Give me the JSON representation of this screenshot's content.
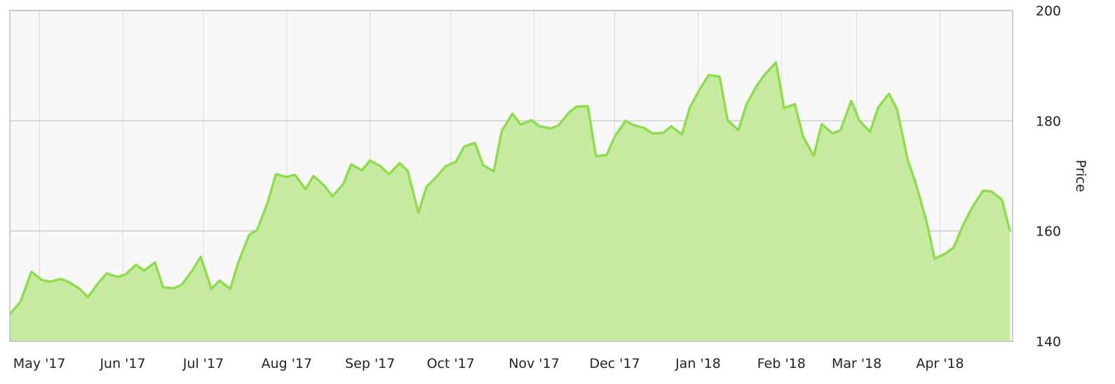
{
  "chart_data": {
    "type": "area",
    "title": "",
    "xlabel": "",
    "ylabel": "Price",
    "y_axis_position": "right",
    "ylim": [
      140,
      200
    ],
    "xlim": [
      "2017-04-20",
      "2018-04-28"
    ],
    "yticks": [
      140,
      160,
      180,
      200
    ],
    "xticks": [
      {
        "label": "May '17",
        "date": "2017-05-01"
      },
      {
        "label": "Jun '17",
        "date": "2017-06-01"
      },
      {
        "label": "Jul '17",
        "date": "2017-07-01"
      },
      {
        "label": "Aug '17",
        "date": "2017-08-01"
      },
      {
        "label": "Sep '17",
        "date": "2017-09-01"
      },
      {
        "label": "Oct '17",
        "date": "2017-10-01"
      },
      {
        "label": "Nov '17",
        "date": "2017-11-01"
      },
      {
        "label": "Dec '17",
        "date": "2017-12-01"
      },
      {
        "label": "Jan '18",
        "date": "2018-01-01"
      },
      {
        "label": "Feb '18",
        "date": "2018-02-01"
      },
      {
        "label": "Mar '18",
        "date": "2018-03-01"
      },
      {
        "label": "Apr '18",
        "date": "2018-04-01"
      }
    ],
    "grid": true,
    "legend": "none",
    "line_color": "#8fdc4f",
    "fill_color": "#c5eaa0",
    "plot_background": "#f8f8f8",
    "grid_color": "#cccccc",
    "series": [
      {
        "x": [
          "2017-04-20",
          "2017-04-24",
          "2017-04-28",
          "2017-05-02",
          "2017-05-05",
          "2017-05-09",
          "2017-05-12",
          "2017-05-16",
          "2017-05-19",
          "2017-05-23",
          "2017-05-26",
          "2017-05-30",
          "2017-06-02",
          "2017-06-06",
          "2017-06-09",
          "2017-06-13",
          "2017-06-16",
          "2017-06-20",
          "2017-06-23",
          "2017-06-27",
          "2017-06-30",
          "2017-07-04",
          "2017-07-07",
          "2017-07-11",
          "2017-07-14",
          "2017-07-18",
          "2017-07-21",
          "2017-07-25",
          "2017-07-28",
          "2017-08-01",
          "2017-08-04",
          "2017-08-08",
          "2017-08-11",
          "2017-08-15",
          "2017-08-18",
          "2017-08-22",
          "2017-08-25",
          "2017-08-29",
          "2017-09-01",
          "2017-09-05",
          "2017-09-08",
          "2017-09-12",
          "2017-09-15",
          "2017-09-19",
          "2017-09-22",
          "2017-09-26",
          "2017-09-29",
          "2017-10-03",
          "2017-10-06",
          "2017-10-10",
          "2017-10-13",
          "2017-10-17",
          "2017-10-20",
          "2017-10-24",
          "2017-10-27",
          "2017-10-31",
          "2017-11-03",
          "2017-11-07",
          "2017-11-10",
          "2017-11-14",
          "2017-11-17",
          "2017-11-21",
          "2017-11-24",
          "2017-11-28",
          "2017-12-01",
          "2017-12-05",
          "2017-12-08",
          "2017-12-12",
          "2017-12-15",
          "2017-12-19",
          "2017-12-22",
          "2017-12-26",
          "2017-12-29",
          "2018-01-02",
          "2018-01-05",
          "2018-01-09",
          "2018-01-12",
          "2018-01-16",
          "2018-01-19",
          "2018-01-23",
          "2018-01-26",
          "2018-01-30",
          "2018-02-02",
          "2018-02-06",
          "2018-02-09",
          "2018-02-13",
          "2018-02-16",
          "2018-02-20",
          "2018-02-23",
          "2018-02-27",
          "2018-03-02",
          "2018-03-06",
          "2018-03-09",
          "2018-03-13",
          "2018-03-16",
          "2018-03-20",
          "2018-03-23",
          "2018-03-27",
          "2018-03-30",
          "2018-04-03",
          "2018-04-06",
          "2018-04-10",
          "2018-04-13",
          "2018-04-17",
          "2018-04-20",
          "2018-04-24",
          "2018-04-27"
        ],
        "y": [
          144.9,
          147.2,
          152.6,
          151.1,
          150.8,
          151.3,
          150.7,
          149.5,
          148.0,
          150.6,
          152.3,
          151.7,
          152.1,
          153.9,
          152.8,
          154.3,
          149.8,
          149.6,
          150.3,
          152.9,
          155.3,
          149.5,
          151.0,
          149.5,
          154.3,
          159.3,
          160.2,
          165.3,
          170.3,
          169.8,
          170.2,
          167.6,
          170.0,
          168.2,
          166.3,
          168.5,
          172.1,
          171.0,
          172.8,
          171.7,
          170.3,
          172.3,
          170.9,
          163.3,
          168.0,
          170.0,
          171.7,
          172.6,
          175.3,
          176.0,
          172.0,
          170.8,
          178.2,
          181.3,
          179.3,
          180.1,
          179.0,
          178.6,
          179.1,
          181.5,
          182.6,
          182.6,
          173.6,
          173.8,
          177.1,
          180.0,
          179.2,
          178.7,
          177.7,
          177.8,
          179.0,
          177.5,
          182.5,
          186.0,
          188.3,
          188.0,
          180.1,
          178.3,
          183.0,
          186.5,
          188.5,
          190.6,
          182.3,
          183.0,
          177.2,
          173.6,
          179.4,
          177.7,
          178.3,
          183.6,
          180.0,
          178.0,
          182.4,
          184.9,
          182.1,
          172.9,
          168.6,
          161.7,
          155.0,
          155.9,
          157.0,
          161.5,
          164.3,
          167.3,
          167.2,
          165.7,
          160.0
        ]
      }
    ]
  }
}
